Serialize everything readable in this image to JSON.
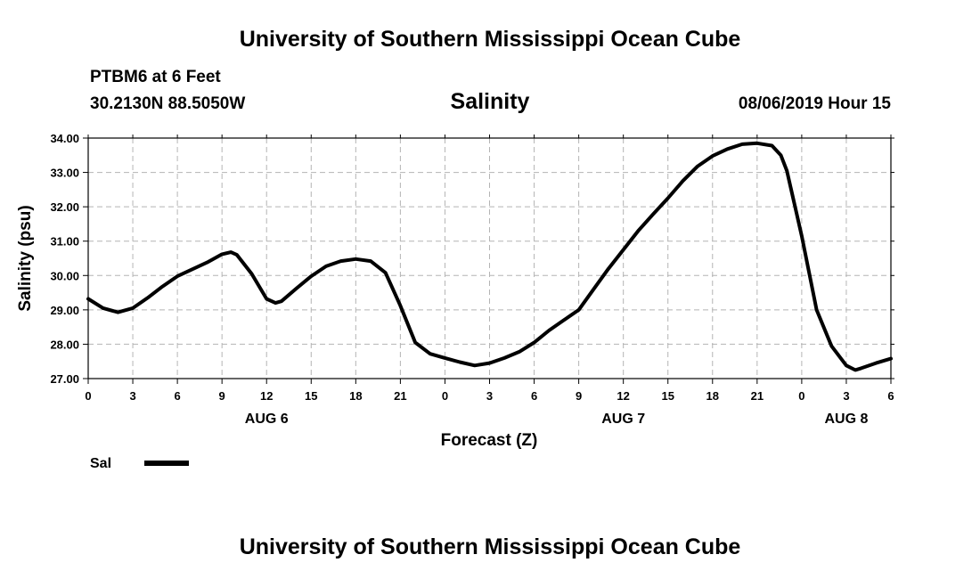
{
  "header": {
    "title": "University of Southern Mississippi Ocean Cube",
    "station": "PTBM6 at 6 Feet",
    "coordinates": "30.2130N 88.5050W",
    "variable": "Salinity",
    "timestamp": "08/06/2019 Hour 15"
  },
  "footer": {
    "title": "University of Southern Mississippi Ocean Cube"
  },
  "colors": {
    "line": "#000000",
    "grid": "#b4b4b4"
  },
  "chart_data": {
    "type": "line",
    "title": "Salinity",
    "xlabel": "Forecast (Z)",
    "ylabel": "Salinity (psu)",
    "xlim": [
      0,
      54
    ],
    "ylim": [
      27.0,
      34.0
    ],
    "y_ticks": [
      "27.00",
      "28.00",
      "29.00",
      "30.00",
      "31.00",
      "32.00",
      "33.00",
      "34.00"
    ],
    "x_ticks": [
      {
        "hour": 0,
        "label": "0"
      },
      {
        "hour": 3,
        "label": "3"
      },
      {
        "hour": 6,
        "label": "6"
      },
      {
        "hour": 9,
        "label": "9"
      },
      {
        "hour": 12,
        "label": "12"
      },
      {
        "hour": 15,
        "label": "15"
      },
      {
        "hour": 18,
        "label": "18"
      },
      {
        "hour": 21,
        "label": "21"
      },
      {
        "hour": 24,
        "label": "0"
      },
      {
        "hour": 27,
        "label": "3"
      },
      {
        "hour": 30,
        "label": "6"
      },
      {
        "hour": 33,
        "label": "9"
      },
      {
        "hour": 36,
        "label": "12"
      },
      {
        "hour": 39,
        "label": "15"
      },
      {
        "hour": 42,
        "label": "18"
      },
      {
        "hour": 45,
        "label": "21"
      },
      {
        "hour": 48,
        "label": "0"
      },
      {
        "hour": 51,
        "label": "3"
      },
      {
        "hour": 54,
        "label": "6"
      }
    ],
    "date_labels": [
      {
        "hour": 12,
        "label": "AUG 6"
      },
      {
        "hour": 36,
        "label": "AUG 7"
      },
      {
        "hour": 51,
        "label": "AUG 8"
      }
    ],
    "grid": true,
    "legend_position": "bottom-left",
    "series": [
      {
        "name": "Sal",
        "x": [
          0,
          1,
          2,
          3,
          4,
          5,
          6,
          7,
          8,
          9,
          9.6,
          10,
          11,
          12,
          12.6,
          13,
          14,
          15,
          16,
          17,
          18,
          19,
          20,
          21,
          22,
          23,
          24,
          25,
          26,
          27,
          28,
          29,
          30,
          31,
          32,
          33,
          34,
          35,
          36,
          37,
          38,
          39,
          40,
          41,
          42,
          43,
          44,
          45,
          46,
          46.6,
          47,
          48,
          49,
          50,
          51,
          51.6,
          52,
          53,
          54
        ],
        "values": [
          29.32,
          29.05,
          28.93,
          29.05,
          29.35,
          29.68,
          29.98,
          30.18,
          30.38,
          30.62,
          30.68,
          30.6,
          30.05,
          29.32,
          29.2,
          29.25,
          29.62,
          29.98,
          30.27,
          30.42,
          30.48,
          30.42,
          30.08,
          29.12,
          28.05,
          27.72,
          27.6,
          27.48,
          27.38,
          27.45,
          27.6,
          27.78,
          28.05,
          28.4,
          28.7,
          29.0,
          29.6,
          30.2,
          30.75,
          31.3,
          31.78,
          32.25,
          32.75,
          33.18,
          33.48,
          33.68,
          33.82,
          33.85,
          33.78,
          33.5,
          33.05,
          31.15,
          29.0,
          27.95,
          27.38,
          27.25,
          27.3,
          27.45,
          27.58
        ]
      }
    ]
  }
}
